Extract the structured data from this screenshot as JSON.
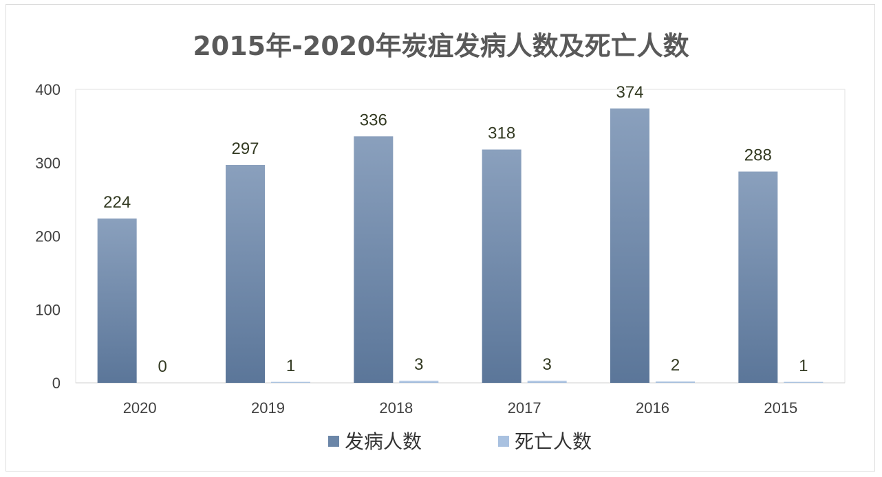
{
  "chart_data": {
    "type": "bar",
    "title": "2015年-2020年炭疽发病人数及死亡人数",
    "categories": [
      "2020",
      "2019",
      "2018",
      "2017",
      "2016",
      "2015"
    ],
    "series": [
      {
        "name": "发病人数",
        "values": [
          224,
          297,
          336,
          318,
          374,
          288
        ],
        "color": "#6b86a8"
      },
      {
        "name": "死亡人数",
        "values": [
          0,
          1,
          3,
          3,
          2,
          1
        ],
        "color": "#a9c1e0"
      }
    ],
    "ylim": [
      0,
      400
    ],
    "yticks": [
      0,
      100,
      200,
      300,
      400
    ],
    "grid": false,
    "legend": "bottom",
    "xlabel": "",
    "ylabel": ""
  }
}
